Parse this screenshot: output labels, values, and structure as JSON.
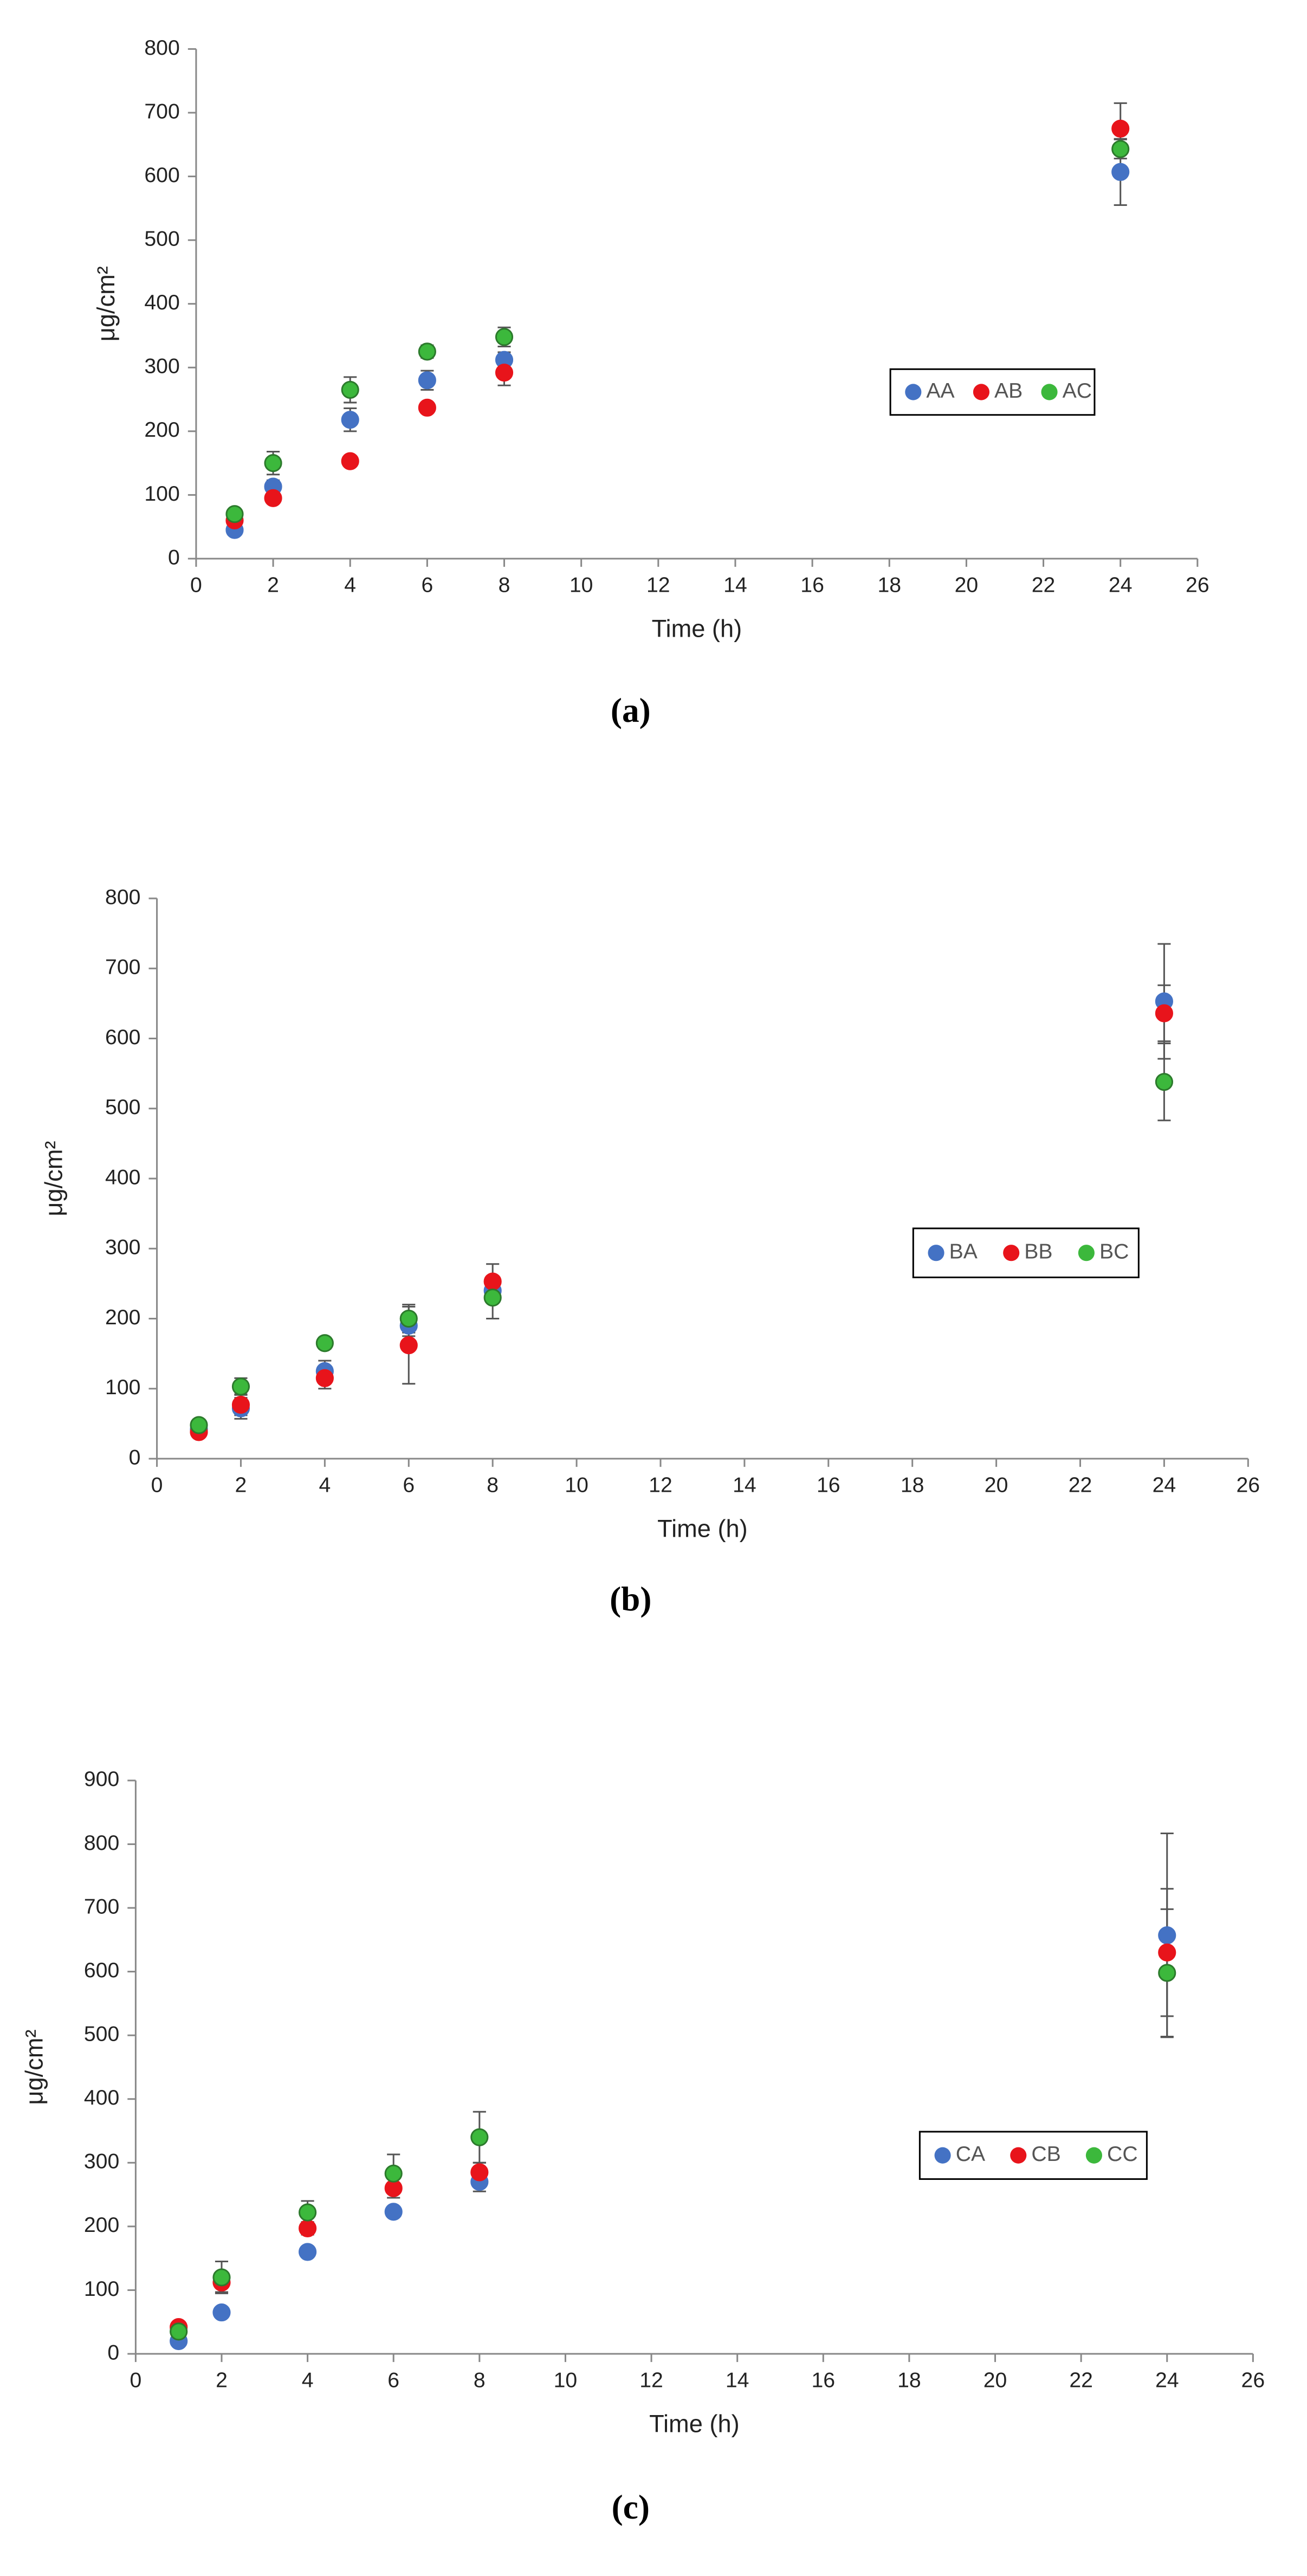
{
  "chart_data": [
    {
      "type": "scatter",
      "panel_label": "(a)",
      "x_label": "Time (h)",
      "y_label": "μg/cm²",
      "x": [
        1,
        2,
        4,
        6,
        8,
        24
      ],
      "xlim": [
        0,
        26
      ],
      "xticks": [
        0,
        2,
        4,
        6,
        8,
        10,
        12,
        14,
        16,
        18,
        20,
        22,
        24,
        26
      ],
      "ylim": [
        0,
        800
      ],
      "yticks": [
        0,
        100,
        200,
        300,
        400,
        500,
        600,
        700,
        800
      ],
      "series": [
        {
          "name": "AA",
          "color": "#4472c4",
          "values": [
            45,
            113,
            218,
            280,
            312,
            607
          ],
          "errors": [
            5,
            10,
            18,
            15,
            12,
            52
          ]
        },
        {
          "name": "AB",
          "color": "#e8141b",
          "values": [
            60,
            95,
            153,
            237,
            292,
            675
          ],
          "errors": [
            5,
            5,
            5,
            5,
            20,
            40
          ]
        },
        {
          "name": "AC",
          "color": "#3cb83c",
          "values": [
            70,
            150,
            265,
            325,
            348,
            643
          ],
          "errors": [
            5,
            18,
            20,
            10,
            15,
            15
          ]
        }
      ]
    },
    {
      "type": "scatter",
      "panel_label": "(b)",
      "x_label": "Time (h)",
      "y_label": "μg/cm²",
      "x": [
        1,
        2,
        4,
        6,
        8,
        24
      ],
      "xlim": [
        0,
        26
      ],
      "xticks": [
        0,
        2,
        4,
        6,
        8,
        10,
        12,
        14,
        16,
        18,
        20,
        22,
        24,
        26
      ],
      "ylim": [
        0,
        800
      ],
      "yticks": [
        0,
        100,
        200,
        300,
        400,
        500,
        600,
        700,
        800
      ],
      "series": [
        {
          "name": "BA",
          "color": "#4472c4",
          "values": [
            42,
            72,
            125,
            190,
            240,
            653
          ],
          "errors": [
            5,
            15,
            15,
            15,
            15,
            82
          ]
        },
        {
          "name": "BB",
          "color": "#e8141b",
          "values": [
            38,
            77,
            115,
            162,
            253,
            636
          ],
          "errors": [
            5,
            15,
            15,
            55,
            25,
            40
          ]
        },
        {
          "name": "BC",
          "color": "#3cb83c",
          "values": [
            48,
            103,
            165,
            200,
            230,
            538
          ],
          "errors": [
            8,
            12,
            8,
            20,
            30,
            55
          ]
        }
      ]
    },
    {
      "type": "scatter",
      "panel_label": "(c)",
      "x_label": "Time (h)",
      "y_label": "μg/cm²",
      "x": [
        1,
        2,
        4,
        6,
        8,
        24
      ],
      "xlim": [
        0,
        26
      ],
      "xticks": [
        0,
        2,
        4,
        6,
        8,
        10,
        12,
        14,
        16,
        18,
        20,
        22,
        24,
        26
      ],
      "ylim": [
        0,
        900
      ],
      "yticks": [
        0,
        100,
        200,
        300,
        400,
        500,
        600,
        700,
        800,
        900
      ],
      "series": [
        {
          "name": "CA",
          "color": "#4472c4",
          "values": [
            20,
            65,
            160,
            223,
            270,
            657
          ],
          "errors": [
            3,
            5,
            5,
            5,
            15,
            160
          ]
        },
        {
          "name": "CB",
          "color": "#e8141b",
          "values": [
            42,
            112,
            197,
            260,
            285,
            630
          ],
          "errors": [
            5,
            15,
            10,
            15,
            15,
            100
          ]
        },
        {
          "name": "CC",
          "color": "#3cb83c",
          "values": [
            35,
            120,
            222,
            283,
            340,
            598
          ],
          "errors": [
            5,
            25,
            18,
            30,
            40,
            100
          ]
        }
      ]
    }
  ]
}
